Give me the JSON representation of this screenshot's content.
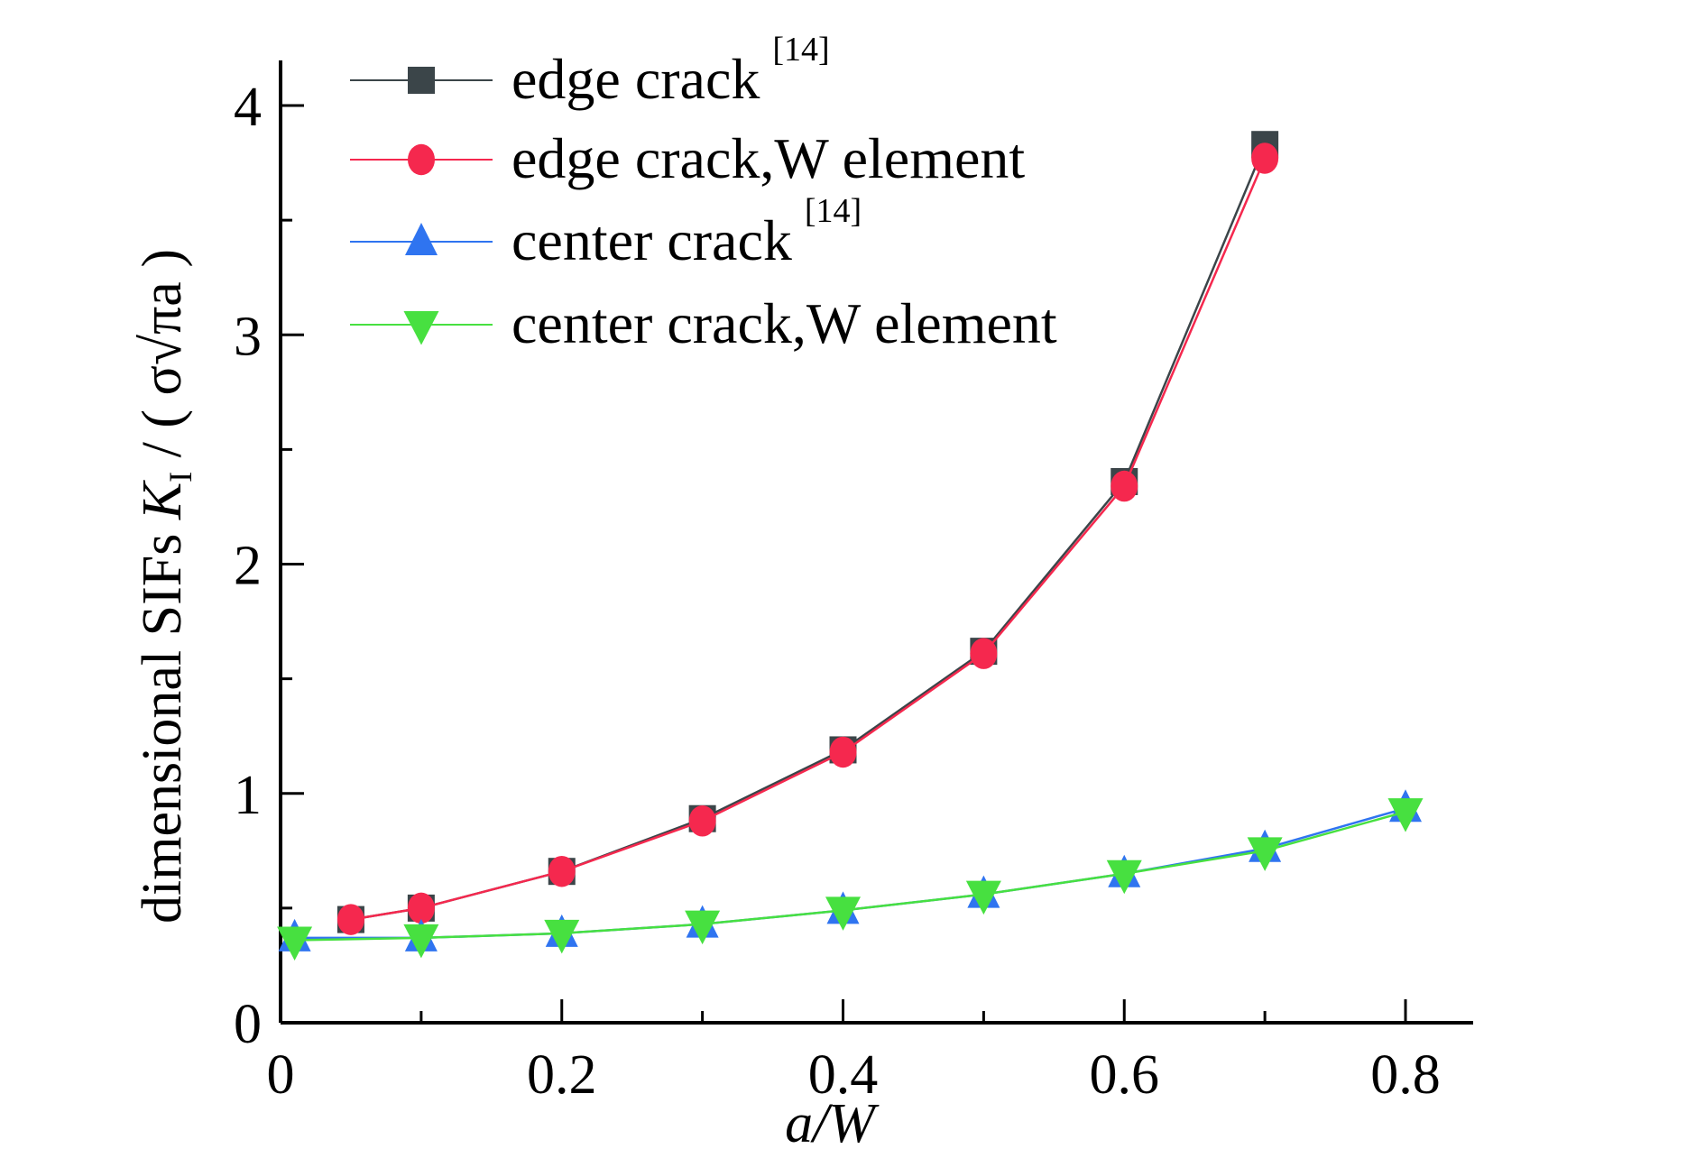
{
  "chart_data": {
    "type": "line",
    "title": "",
    "xlabel": "a/W",
    "ylabel": {
      "prefix": "dimensional SIFs ",
      "k": "K",
      "k_sub": "I",
      "rest": " / ( σ√πa )"
    },
    "xlim": [
      0,
      0.85
    ],
    "ylim": [
      0,
      4.2
    ],
    "xticks": [
      0,
      0.2,
      0.4,
      0.6,
      0.8
    ],
    "xtick_labels": [
      "0",
      "0.2",
      "0.4",
      "0.6",
      "0.8"
    ],
    "yticks": [
      0,
      1,
      2,
      3,
      4
    ],
    "ytick_labels": [
      "0",
      "1",
      "2",
      "3",
      "4"
    ],
    "grid": false,
    "legend_placement": "top-left",
    "series": [
      {
        "name": "edge crack",
        "sup": "[14]",
        "marker": "square",
        "color": "#3b4549",
        "x": [
          0.05,
          0.1,
          0.2,
          0.3,
          0.4,
          0.5,
          0.6,
          0.7
        ],
        "y": [
          0.45,
          0.5,
          0.66,
          0.89,
          1.19,
          1.62,
          2.36,
          3.83
        ]
      },
      {
        "name": "edge crack,W element",
        "sup": "",
        "marker": "circle",
        "color": "#f5284e",
        "x": [
          0.05,
          0.1,
          0.2,
          0.3,
          0.4,
          0.5,
          0.6,
          0.7
        ],
        "y": [
          0.45,
          0.5,
          0.66,
          0.88,
          1.18,
          1.61,
          2.34,
          3.77
        ]
      },
      {
        "name": "center crack",
        "sup": "[14]",
        "marker": "triangle-up",
        "color": "#2f74f0",
        "x": [
          0.01,
          0.1,
          0.2,
          0.3,
          0.4,
          0.5,
          0.6,
          0.7,
          0.8
        ],
        "y": [
          0.37,
          0.37,
          0.39,
          0.43,
          0.49,
          0.56,
          0.65,
          0.76,
          0.935
        ]
      },
      {
        "name": "center crack,W element",
        "sup": "",
        "marker": "triangle-down",
        "color": "#47e040",
        "x": [
          0.01,
          0.1,
          0.2,
          0.3,
          0.4,
          0.5,
          0.6,
          0.7,
          0.8
        ],
        "y": [
          0.36,
          0.37,
          0.39,
          0.43,
          0.49,
          0.56,
          0.65,
          0.75,
          0.92
        ]
      }
    ]
  }
}
